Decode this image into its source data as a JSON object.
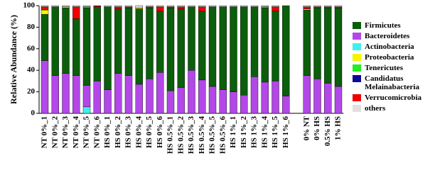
{
  "chart_data": {
    "type": "stacked-bar",
    "y_label": "Relative Abundance (%)",
    "ylim": [
      0,
      100
    ],
    "yticks": [
      0,
      20,
      40,
      60,
      80,
      100
    ],
    "categories": [
      "NT 0%_1",
      "NT 0%_2",
      "NT 0%_3",
      "NT 0%_4",
      "NT 0%_5",
      "NT 0%_6",
      "HS 0%_1",
      "HS 0%_2",
      "HS 0%_3",
      "HS 0%_4",
      "HS 0%_5",
      "HS 0%_6",
      "HS 0.5%_1",
      "HS 0.5%_2",
      "HS 0.5%_3",
      "HS 0.5%_4",
      "HS 0.5%_5",
      "HS 0.5%_6",
      "HS 1%_1",
      "HS 1%_2",
      "HS 1%_3",
      "HS 1%_4",
      "HS 1%_5",
      "HS 1%_6",
      null,
      "0% NT",
      "0% HS",
      "0.5% HS",
      "1% HS"
    ],
    "series": [
      {
        "name": "Firmicutes",
        "color": "#0b5e0b",
        "values": [
          43,
          64,
          61,
          53,
          72,
          69,
          77,
          60,
          63,
          70,
          66,
          57,
          77,
          73,
          59,
          64,
          74,
          77,
          79,
          82,
          65,
          69,
          65,
          84,
          null,
          61,
          66,
          70,
          73
        ]
      },
      {
        "name": "Bacteroidetes",
        "color": "#b347e8",
        "values": [
          49,
          35,
          37,
          35,
          20,
          30,
          22,
          37,
          35,
          27,
          32,
          38,
          21,
          24,
          40,
          31,
          25,
          22,
          20,
          17,
          34,
          29,
          30,
          16,
          null,
          35,
          32,
          28,
          25
        ]
      },
      {
        "name": "Actinobacteria",
        "color": "#40f0f0",
        "values": [
          0,
          0,
          0,
          0,
          6,
          0,
          0,
          0,
          0,
          0,
          0,
          0,
          0,
          0,
          0,
          0,
          0,
          0,
          0,
          0,
          0,
          0,
          0,
          0,
          null,
          0,
          0,
          0,
          0
        ]
      },
      {
        "name": "Proteobacteria",
        "color": "#f5f500",
        "values": [
          4,
          0,
          1,
          0,
          0,
          0,
          0,
          0,
          0,
          1,
          0,
          0,
          0,
          0,
          0,
          0,
          0,
          0,
          0,
          0,
          0,
          0,
          0,
          0,
          null,
          1,
          0,
          0,
          0
        ]
      },
      {
        "name": "Tenericutes",
        "color": "#22ee22",
        "values": [
          0,
          0,
          0,
          0,
          1,
          0,
          0,
          0,
          0,
          0,
          0,
          0,
          0,
          0,
          0,
          0,
          0,
          0,
          0,
          0,
          0,
          1,
          0,
          0,
          null,
          0,
          0,
          0,
          0
        ]
      },
      {
        "name": "Candidatus Melainabacteria",
        "color": "#0a0a9a",
        "values": [
          0,
          0,
          0,
          0,
          0,
          0,
          0,
          0,
          0,
          0,
          0,
          0,
          0,
          0,
          0,
          0,
          0,
          0,
          0,
          0,
          0,
          0,
          0,
          0,
          null,
          0,
          0,
          0,
          0
        ]
      },
      {
        "name": "Verrucomicrobia",
        "color": "#f00000",
        "values": [
          3,
          0,
          0,
          11,
          0,
          1,
          0,
          2,
          1,
          0,
          1,
          4,
          1,
          2,
          0,
          4,
          0,
          0,
          0,
          0,
          0,
          0,
          4,
          0,
          null,
          2,
          1,
          1,
          1
        ]
      },
      {
        "name": "others",
        "color": "#e0e0e0",
        "values": [
          1,
          1,
          1,
          1,
          1,
          0,
          1,
          1,
          1,
          2,
          1,
          1,
          1,
          1,
          1,
          1,
          1,
          1,
          1,
          1,
          1,
          1,
          1,
          0,
          null,
          1,
          1,
          1,
          1
        ]
      }
    ]
  }
}
